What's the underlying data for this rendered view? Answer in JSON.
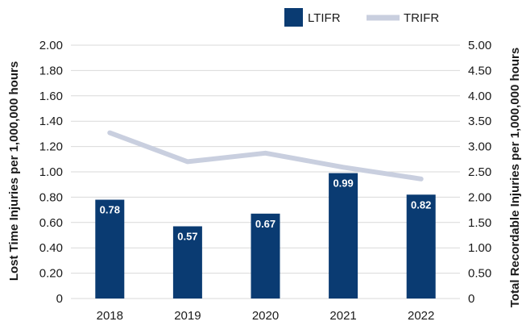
{
  "chart_data": {
    "type": "bar",
    "categories": [
      "2018",
      "2019",
      "2020",
      "2021",
      "2022"
    ],
    "series": [
      {
        "name": "LTIFR",
        "type": "bar",
        "axis": "left",
        "values": [
          0.78,
          0.57,
          0.67,
          0.99,
          0.82
        ],
        "data_labels": [
          "0.78",
          "0.57",
          "0.67",
          "0.99",
          "0.82"
        ]
      },
      {
        "name": "TRIFR",
        "type": "line",
        "axis": "right",
        "values": [
          3.27,
          2.7,
          2.87,
          2.59,
          2.36
        ]
      }
    ],
    "ylabel": "Lost Time Injuries per 1,000,000 hours",
    "y2label": "Total Recordable Injuries per 1,000,000 hours",
    "ylim": [
      0,
      2
    ],
    "y2lim": [
      0,
      5
    ],
    "yticks": [
      "2.00",
      "1.80",
      "1.60",
      "1.40",
      "1.20",
      "1.00",
      "0.80",
      "0.60",
      "0.40",
      "0.20",
      "0"
    ],
    "y2ticks": [
      "5.00",
      "4.50",
      "4.00",
      "3.50",
      "3.00",
      "2.50",
      "2.00",
      "1.50",
      "1.00",
      "0.50",
      "0"
    ],
    "grid": true,
    "legend_position": "top-right",
    "colors": {
      "bar": "#0a3b72",
      "line": "#c9cfdf",
      "grid": "#d9d9d9"
    }
  }
}
